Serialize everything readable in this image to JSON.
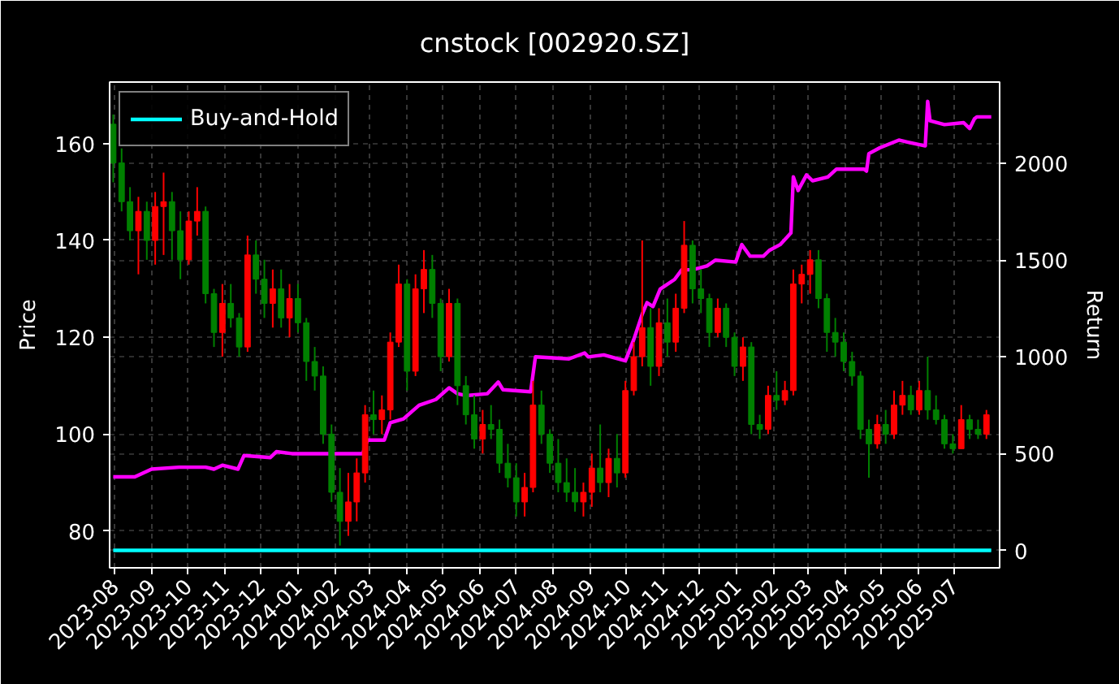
{
  "chart_data": {
    "type": "candlestick",
    "title": "cnstock [002920.SZ]",
    "ylabel": "Price",
    "y2label": "Return",
    "x": [
      "2023-07-31",
      "2023-08-07",
      "2023-08-14",
      "2023-08-21",
      "2023-08-28",
      "2023-09-04",
      "2023-09-11",
      "2023-09-18",
      "2023-09-25",
      "2023-10-02",
      "2023-10-09",
      "2023-10-16",
      "2023-10-23",
      "2023-10-30",
      "2023-11-06",
      "2023-11-13",
      "2023-11-20",
      "2023-11-27",
      "2023-12-04",
      "2023-12-11",
      "2023-12-18",
      "2023-12-25",
      "2024-01-01",
      "2024-01-08",
      "2024-01-15",
      "2024-01-22",
      "2024-01-29",
      "2024-02-05",
      "2024-02-12",
      "2024-02-19",
      "2024-02-26",
      "2024-03-04",
      "2024-03-11",
      "2024-03-18",
      "2024-03-25",
      "2024-04-01",
      "2024-04-08",
      "2024-04-15",
      "2024-04-22",
      "2024-04-29",
      "2024-05-06",
      "2024-05-13",
      "2024-05-20",
      "2024-05-27",
      "2024-06-03",
      "2024-06-10",
      "2024-06-17",
      "2024-06-24",
      "2024-07-01",
      "2024-07-08",
      "2024-07-15",
      "2024-07-22",
      "2024-07-29",
      "2024-08-05",
      "2024-08-12",
      "2024-08-19",
      "2024-08-26",
      "2024-09-02",
      "2024-09-09",
      "2024-09-16",
      "2024-09-23",
      "2024-09-30",
      "2024-10-07",
      "2024-10-14",
      "2024-10-21",
      "2024-10-28",
      "2024-11-04",
      "2024-11-11",
      "2024-11-18",
      "2024-11-25",
      "2024-12-02",
      "2024-12-09",
      "2024-12-16",
      "2024-12-23",
      "2024-12-30",
      "2025-01-06",
      "2025-01-13",
      "2025-01-20",
      "2025-01-27",
      "2025-02-03",
      "2025-02-10",
      "2025-02-17",
      "2025-02-24",
      "2025-03-03",
      "2025-03-10",
      "2025-03-17",
      "2025-03-24",
      "2025-03-31",
      "2025-04-07",
      "2025-04-14",
      "2025-04-21",
      "2025-04-28",
      "2025-05-05",
      "2025-05-12",
      "2025-05-19",
      "2025-05-26",
      "2025-06-02",
      "2025-06-09",
      "2025-06-16",
      "2025-06-23",
      "2025-06-30",
      "2025-07-07",
      "2025-07-14",
      "2025-07-21",
      "2025-07-28"
    ],
    "ohlc": [
      [
        164,
        166,
        152,
        156
      ],
      [
        156,
        159,
        146,
        148
      ],
      [
        148,
        151,
        140,
        142
      ],
      [
        142,
        149,
        133,
        146
      ],
      [
        146,
        148,
        136,
        140
      ],
      [
        140,
        150,
        135,
        147
      ],
      [
        147,
        154,
        137,
        148
      ],
      [
        148,
        150,
        136,
        142
      ],
      [
        142,
        146,
        132,
        136
      ],
      [
        136,
        146,
        135,
        144
      ],
      [
        144,
        151,
        141,
        146
      ],
      [
        146,
        147,
        127,
        129
      ],
      [
        129,
        130,
        118,
        121
      ],
      [
        121,
        131,
        116,
        127
      ],
      [
        127,
        131,
        122,
        124
      ],
      [
        124,
        125,
        116,
        118
      ],
      [
        118,
        141,
        117,
        137
      ],
      [
        137,
        140,
        129,
        132
      ],
      [
        132,
        136,
        124,
        127
      ],
      [
        127,
        134,
        122,
        130
      ],
      [
        130,
        134,
        122,
        124
      ],
      [
        124,
        131,
        120,
        128
      ],
      [
        128,
        131,
        121,
        123
      ],
      [
        123,
        124,
        111,
        115
      ],
      [
        115,
        118,
        109,
        112
      ],
      [
        112,
        114,
        98,
        100
      ],
      [
        100,
        102,
        86,
        88
      ],
      [
        88,
        93,
        77,
        82
      ],
      [
        82,
        92,
        79,
        86
      ],
      [
        86,
        95,
        82,
        92
      ],
      [
        92,
        106,
        90,
        104
      ],
      [
        104,
        109,
        100,
        103
      ],
      [
        103,
        108,
        100,
        105
      ],
      [
        105,
        121,
        103,
        119
      ],
      [
        119,
        135,
        118,
        131
      ],
      [
        131,
        132,
        109,
        113
      ],
      [
        113,
        133,
        112,
        130
      ],
      [
        130,
        138,
        125,
        134
      ],
      [
        134,
        137,
        124,
        127
      ],
      [
        127,
        128,
        113,
        116
      ],
      [
        116,
        130,
        115,
        127
      ],
      [
        127,
        128,
        106,
        110
      ],
      [
        110,
        112,
        102,
        104
      ],
      [
        104,
        108,
        97,
        99
      ],
      [
        99,
        105,
        96,
        102
      ],
      [
        102,
        106,
        99,
        101
      ],
      [
        101,
        103,
        92,
        94
      ],
      [
        94,
        98,
        89,
        91
      ],
      [
        91,
        94,
        83,
        86
      ],
      [
        86,
        92,
        83,
        89
      ],
      [
        89,
        111,
        88,
        106
      ],
      [
        106,
        109,
        98,
        100
      ],
      [
        100,
        101,
        92,
        94
      ],
      [
        94,
        99,
        88,
        90
      ],
      [
        90,
        95,
        86,
        88
      ],
      [
        88,
        93,
        84,
        86
      ],
      [
        86,
        90,
        83,
        88
      ],
      [
        88,
        96,
        85,
        93
      ],
      [
        93,
        102,
        88,
        90
      ],
      [
        90,
        97,
        87,
        95
      ],
      [
        95,
        100,
        89,
        92
      ],
      [
        92,
        111,
        91,
        109
      ],
      [
        109,
        119,
        108,
        116
      ],
      [
        116,
        140,
        114,
        122
      ],
      [
        122,
        126,
        110,
        114
      ],
      [
        114,
        126,
        112,
        123
      ],
      [
        123,
        128,
        116,
        119
      ],
      [
        119,
        129,
        117,
        126
      ],
      [
        126,
        144,
        125,
        139
      ],
      [
        139,
        140,
        127,
        130
      ],
      [
        130,
        134,
        125,
        128
      ],
      [
        128,
        129,
        118,
        121
      ],
      [
        121,
        128,
        120,
        126
      ],
      [
        126,
        127,
        118,
        120
      ],
      [
        120,
        121,
        112,
        114
      ],
      [
        114,
        120,
        111,
        118
      ],
      [
        118,
        119,
        100,
        102
      ],
      [
        102,
        104,
        99,
        101
      ],
      [
        101,
        110,
        100,
        108
      ],
      [
        108,
        113,
        105,
        107
      ],
      [
        107,
        111,
        106,
        109
      ],
      [
        109,
        134,
        108,
        131
      ],
      [
        131,
        135,
        127,
        133
      ],
      [
        133,
        138,
        129,
        136
      ],
      [
        136,
        138,
        126,
        128
      ],
      [
        128,
        129,
        117,
        121
      ],
      [
        121,
        124,
        116,
        119
      ],
      [
        119,
        121,
        113,
        115
      ],
      [
        115,
        117,
        110,
        112
      ],
      [
        112,
        113,
        99,
        101
      ],
      [
        101,
        103,
        91,
        98
      ],
      [
        98,
        104,
        97,
        102
      ],
      [
        102,
        105,
        98,
        100
      ],
      [
        100,
        109,
        99,
        106
      ],
      [
        106,
        111,
        104,
        108
      ],
      [
        108,
        110,
        104,
        105
      ],
      [
        105,
        111,
        104,
        109
      ],
      [
        109,
        116,
        103,
        105
      ],
      [
        105,
        108,
        102,
        103
      ],
      [
        103,
        104,
        97,
        98
      ],
      [
        98,
        100,
        96,
        97
      ],
      [
        97,
        106,
        97,
        103
      ],
      [
        103,
        104,
        99,
        101
      ],
      [
        101,
        103,
        99,
        100
      ],
      [
        100,
        105,
        99,
        104
      ]
    ],
    "colors": [
      "#008000",
      "#008000",
      "#008000",
      "#ff0000",
      "#008000",
      "#ff0000",
      "#ff0000",
      "#008000",
      "#008000",
      "#ff0000",
      "#ff0000",
      "#008000",
      "#008000",
      "#ff0000",
      "#008000",
      "#008000",
      "#ff0000",
      "#008000",
      "#008000",
      "#ff0000",
      "#008000",
      "#ff0000",
      "#008000",
      "#008000",
      "#008000",
      "#008000",
      "#008000",
      "#008000",
      "#ff0000",
      "#ff0000",
      "#ff0000",
      "#008000",
      "#ff0000",
      "#ff0000",
      "#ff0000",
      "#008000",
      "#ff0000",
      "#ff0000",
      "#008000",
      "#008000",
      "#ff0000",
      "#008000",
      "#008000",
      "#008000",
      "#ff0000",
      "#008000",
      "#008000",
      "#008000",
      "#008000",
      "#ff0000",
      "#ff0000",
      "#008000",
      "#008000",
      "#008000",
      "#008000",
      "#008000",
      "#ff0000",
      "#ff0000",
      "#008000",
      "#ff0000",
      "#008000",
      "#ff0000",
      "#ff0000",
      "#ff0000",
      "#008000",
      "#ff0000",
      "#008000",
      "#ff0000",
      "#ff0000",
      "#008000",
      "#008000",
      "#008000",
      "#ff0000",
      "#008000",
      "#008000",
      "#ff0000",
      "#008000",
      "#008000",
      "#ff0000",
      "#008000",
      "#ff0000",
      "#ff0000",
      "#ff0000",
      "#ff0000",
      "#008000",
      "#008000",
      "#008000",
      "#008000",
      "#008000",
      "#008000",
      "#008000",
      "#ff0000",
      "#008000",
      "#ff0000",
      "#ff0000",
      "#008000",
      "#ff0000",
      "#008000",
      "#008000",
      "#008000",
      "#008000",
      "#ff0000",
      "#008000",
      "#008000",
      "#ff0000"
    ],
    "series": [
      {
        "type": "line",
        "axis": "y2",
        "color": "#ff00ff",
        "x": [
          "2023-07-31",
          "2023-08-18",
          "2023-09-01",
          "2023-09-24",
          "2023-10-16",
          "2023-10-23",
          "2023-10-30",
          "2023-11-12",
          "2023-11-17",
          "2023-12-09",
          "2023-12-14",
          "2023-12-27",
          "2024-02-06",
          "2024-02-24",
          "2024-02-28",
          "2024-03-13",
          "2024-03-18",
          "2024-03-29",
          "2024-04-11",
          "2024-04-25",
          "2024-05-06",
          "2024-05-13",
          "2024-05-20",
          "2024-06-07",
          "2024-06-16",
          "2024-06-20",
          "2024-07-13",
          "2024-07-17",
          "2024-08-14",
          "2024-08-27",
          "2024-08-30",
          "2024-09-12",
          "2024-09-30",
          "2024-10-07",
          "2024-10-14",
          "2024-10-18",
          "2024-10-23",
          "2024-10-29",
          "2024-11-10",
          "2024-11-16",
          "2024-11-25",
          "2024-12-07",
          "2024-12-14",
          "2024-12-31",
          "2025-01-05",
          "2025-01-12",
          "2025-01-23",
          "2025-01-28",
          "2025-02-06",
          "2025-02-15",
          "2025-02-17",
          "2025-02-21",
          "2025-02-28",
          "2025-03-05",
          "2025-03-18",
          "2025-03-25",
          "2025-04-17",
          "2025-04-19",
          "2025-04-21",
          "2025-04-30",
          "2025-05-16",
          "2025-05-23",
          "2025-06-07",
          "2025-06-09",
          "2025-06-11",
          "2025-06-23",
          "2025-07-09",
          "2025-07-14",
          "2025-07-18",
          "2025-07-20",
          "2025-08-01"
        ],
        "values": [
          380,
          380,
          420,
          430,
          430,
          420,
          440,
          420,
          490,
          480,
          510,
          500,
          500,
          500,
          570,
          570,
          660,
          680,
          750,
          780,
          840,
          810,
          800,
          810,
          870,
          830,
          820,
          1000,
          990,
          1020,
          1000,
          1010,
          980,
          1090,
          1220,
          1280,
          1260,
          1350,
          1400,
          1450,
          1450,
          1470,
          1500,
          1490,
          1580,
          1520,
          1520,
          1550,
          1580,
          1640,
          1930,
          1860,
          1940,
          1910,
          1930,
          1970,
          1970,
          1960,
          2050,
          2080,
          2120,
          2110,
          2090,
          2320,
          2220,
          2200,
          2210,
          2180,
          2230,
          2240,
          2240
        ]
      },
      {
        "type": "line",
        "axis": "y2",
        "name": "Buy-and-Hold",
        "color": "#00ffff",
        "x": [
          "2023-07-31",
          "2025-08-01"
        ],
        "values": [
          0,
          0
        ]
      }
    ],
    "xlim": [
      "2023-07-28",
      "2025-08-08"
    ],
    "xticks": [
      "2023-08",
      "2023-09",
      "2023-10",
      "2023-11",
      "2023-12",
      "2024-01",
      "2024-02",
      "2024-03",
      "2024-04",
      "2024-05",
      "2024-06",
      "2024-07",
      "2024-08",
      "2024-09",
      "2024-10",
      "2024-11",
      "2024-12",
      "2025-01",
      "2025-02",
      "2025-03",
      "2025-04",
      "2025-05",
      "2025-06",
      "2025-07"
    ],
    "ylim": [
      72.4,
      172.7
    ],
    "yticks": [
      80,
      100,
      120,
      140,
      160
    ],
    "y2lim": [
      -90,
      2420
    ],
    "y2ticks": [
      0,
      500,
      1000,
      1500,
      2000
    ],
    "grid": true,
    "legend": "top left",
    "line_style": "solid"
  }
}
